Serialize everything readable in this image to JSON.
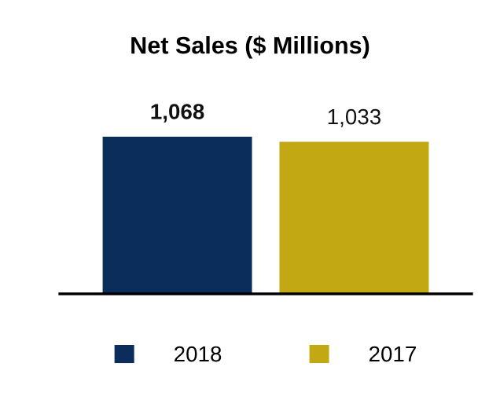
{
  "chart_data": {
    "type": "bar",
    "title": "Net Sales ($ Millions)",
    "categories": [
      null
    ],
    "series": [
      {
        "name": "2018",
        "color": "#0b2d5c",
        "values": [
          1068
        ],
        "value_labels": [
          "1,068"
        ]
      },
      {
        "name": "2017",
        "color": "#c2a812",
        "values": [
          1033
        ],
        "value_labels": [
          "1,033"
        ]
      }
    ],
    "legend": "bottom",
    "grid": false
  }
}
